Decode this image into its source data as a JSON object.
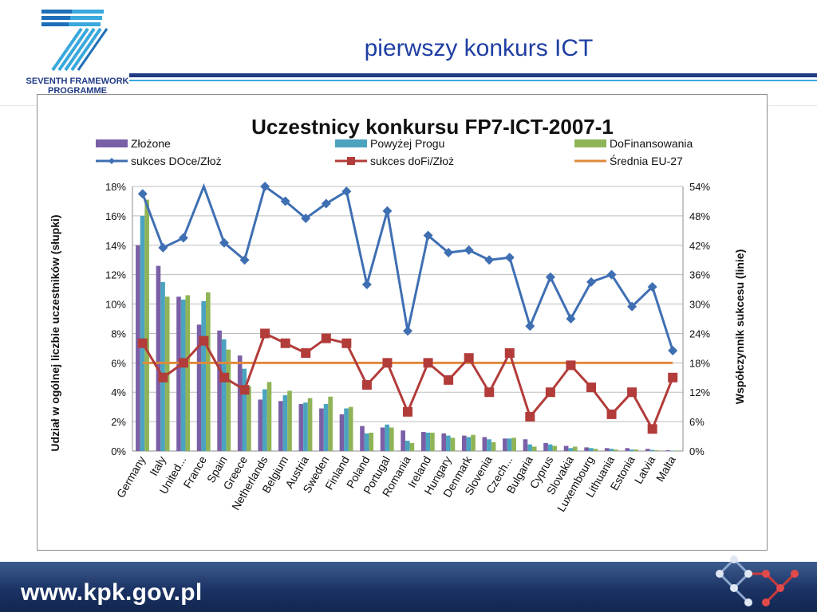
{
  "header": {
    "title": "pierwszy konkurs ICT",
    "logo_line1": "SEVENTH FRAMEWORK",
    "logo_line2": "PROGRAMME"
  },
  "footer": {
    "url": "www.kpk.gov.pl"
  },
  "colors": {
    "zlozone": "#7b5fa6",
    "powyzej": "#4ba3c0",
    "dofin": "#8fb457",
    "docez": "#3f6fb3",
    "dofiz": "#b23c3a",
    "srednia": "#e08a3c"
  },
  "chart_data": {
    "type": "bar",
    "title": "Uczestnicy konkursu FP7-ICT-2007-1",
    "ylabel_left": "Udział w ogólnej liczbie uczestników (słupki)",
    "ylabel_right": "Współczynnik sukcesu (linie)",
    "ylim_left": [
      0,
      18
    ],
    "ylim_right": [
      0,
      54
    ],
    "left_ticks": [
      "0%",
      "2%",
      "4%",
      "6%",
      "8%",
      "10%",
      "12%",
      "14%",
      "16%",
      "18%"
    ],
    "right_ticks": [
      "0%",
      "6%",
      "12%",
      "18%",
      "24%",
      "30%",
      "36%",
      "42%",
      "48%",
      "54%"
    ],
    "grid": true,
    "legend_placement": "top",
    "categories": [
      "Germany",
      "Italy",
      "United...",
      "France",
      "Spain",
      "Greece",
      "Netherlands",
      "Belgium",
      "Austria",
      "Sweden",
      "Finland",
      "Poland",
      "Portugal",
      "Romania",
      "Ireland",
      "Hungary",
      "Denmark",
      "Slovenia",
      "Czech...",
      "Bulgaria",
      "Cyprus",
      "Slovakia",
      "Luxembourg",
      "Lithuania",
      "Estonia",
      "Latvia",
      "Malta"
    ],
    "bar_series": [
      {
        "name": "Złożone",
        "values": [
          14.0,
          12.6,
          10.5,
          8.6,
          8.2,
          6.5,
          3.5,
          3.4,
          3.2,
          2.9,
          2.5,
          1.7,
          1.6,
          1.4,
          1.3,
          1.2,
          1.05,
          0.95,
          0.85,
          0.8,
          0.55,
          0.35,
          0.25,
          0.2,
          0.2,
          0.15,
          0.05
        ]
      },
      {
        "name": "Powyżej Progu",
        "values": [
          16.0,
          11.5,
          10.3,
          10.2,
          7.6,
          5.6,
          4.2,
          3.8,
          3.3,
          3.2,
          2.9,
          1.2,
          1.8,
          0.7,
          1.25,
          1.05,
          0.95,
          0.8,
          0.85,
          0.45,
          0.45,
          0.2,
          0.2,
          0.15,
          0.1,
          0.08,
          0.03
        ]
      },
      {
        "name": "DoFinansowania",
        "values": [
          17.1,
          10.5,
          10.6,
          10.8,
          6.9,
          4.4,
          4.7,
          4.1,
          3.6,
          3.7,
          3.0,
          1.25,
          1.6,
          0.55,
          1.25,
          0.9,
          1.1,
          0.6,
          0.9,
          0.3,
          0.35,
          0.3,
          0.15,
          0.1,
          0.1,
          0.05,
          0.03
        ]
      }
    ],
    "line_series": [
      {
        "name": "sukces DOce/Złoż",
        "values": [
          52.5,
          41.5,
          43.5,
          55.0,
          42.5,
          39.0,
          54.0,
          51.0,
          47.5,
          50.5,
          53.0,
          34.0,
          49.0,
          24.5,
          44.0,
          40.5,
          41.0,
          39.0,
          39.5,
          25.5,
          35.5,
          27.0,
          34.5,
          36.0,
          29.5,
          33.5,
          20.5
        ]
      },
      {
        "name": "sukces doFi/Złoż",
        "values": [
          22.0,
          15.0,
          18.0,
          22.5,
          15.0,
          12.5,
          24.0,
          22.0,
          20.0,
          23.0,
          22.0,
          13.5,
          18.0,
          8.0,
          18.0,
          14.5,
          19.0,
          12.0,
          20.0,
          7.0,
          12.0,
          17.5,
          13.0,
          7.5,
          12.0,
          4.5,
          15.0
        ]
      },
      {
        "name": "Średnia EU-27",
        "values": [
          18,
          18,
          18,
          18,
          18,
          18,
          18,
          18,
          18,
          18,
          18,
          18,
          18,
          18,
          18,
          18,
          18,
          18,
          18,
          18,
          18,
          18,
          18,
          18,
          18,
          18,
          18
        ]
      }
    ]
  }
}
